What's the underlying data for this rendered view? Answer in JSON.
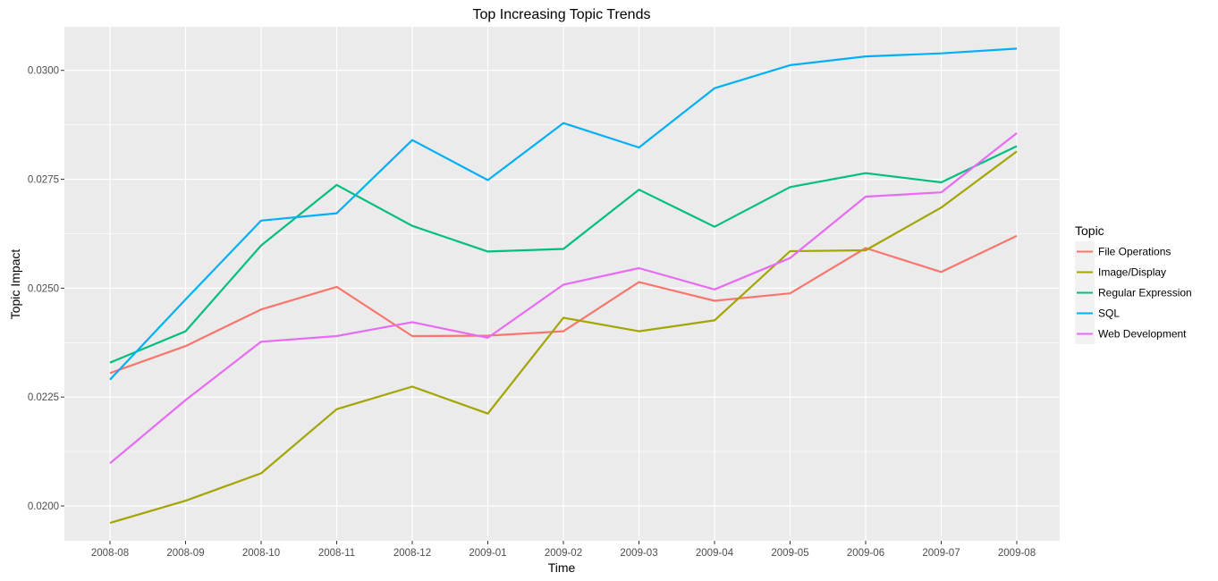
{
  "chart_data": {
    "type": "line",
    "title": "Top Increasing Topic Trends",
    "xlabel": "Time",
    "ylabel": "Topic Impact",
    "x": [
      "2008-08",
      "2008-09",
      "2008-10",
      "2008-11",
      "2008-12",
      "2009-01",
      "2009-02",
      "2009-03",
      "2009-04",
      "2009-05",
      "2009-06",
      "2009-07",
      "2009-08"
    ],
    "ylim": [
      0.0192,
      0.031
    ],
    "yticks": [
      0.02,
      0.0225,
      0.025,
      0.0275,
      0.03
    ],
    "ytick_labels": [
      "0.0200",
      "0.0225",
      "0.0250",
      "0.0275",
      "0.0300"
    ],
    "grid": true,
    "legend": {
      "title": "Topic",
      "position": "right"
    },
    "series": [
      {
        "name": "File Operations",
        "color": "#F8766D",
        "values": [
          0.02305,
          0.02367,
          0.02451,
          0.02503,
          0.0239,
          0.02391,
          0.02401,
          0.02514,
          0.02471,
          0.02488,
          0.02592,
          0.02537,
          0.0262
        ]
      },
      {
        "name": "Image/Display",
        "color": "#A3A500",
        "values": [
          0.01961,
          0.02012,
          0.02075,
          0.02222,
          0.02274,
          0.02212,
          0.02432,
          0.02401,
          0.02426,
          0.02585,
          0.02587,
          0.02685,
          0.02814
        ]
      },
      {
        "name": "Regular Expression",
        "color": "#00BF7D",
        "values": [
          0.02329,
          0.02401,
          0.02598,
          0.02737,
          0.02643,
          0.02584,
          0.0259,
          0.02726,
          0.02641,
          0.02732,
          0.02764,
          0.02743,
          0.02826
        ]
      },
      {
        "name": "SQL",
        "color": "#00B0F6",
        "values": [
          0.0229,
          0.02474,
          0.02655,
          0.02672,
          0.0284,
          0.02748,
          0.02879,
          0.02823,
          0.02959,
          0.03012,
          0.03032,
          0.03039,
          0.0305
        ]
      },
      {
        "name": "Web Development",
        "color": "#E76BF3",
        "values": [
          0.02098,
          0.02243,
          0.02377,
          0.0239,
          0.02422,
          0.02386,
          0.02508,
          0.02546,
          0.02497,
          0.02569,
          0.0271,
          0.0272,
          0.02856
        ]
      }
    ]
  },
  "style": {
    "panel_background": "#EBEBEB",
    "grid_color": "#FFFFFF",
    "legend_key_background": "#F2F2F2"
  }
}
